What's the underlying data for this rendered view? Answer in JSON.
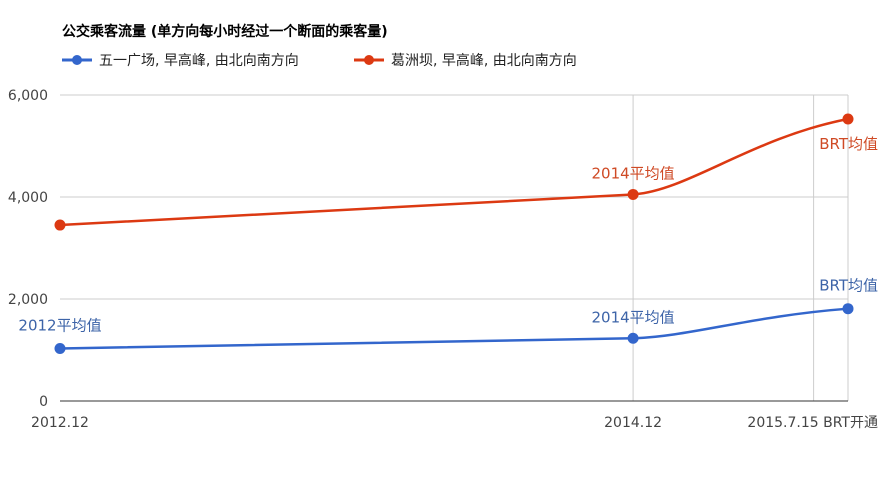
{
  "chart_data": {
    "type": "line",
    "title": "公交乘客流量 (单方向每小时经过一个断面的乘客量)",
    "x": [
      "2012.12",
      "2014.12",
      "2015.7.15 BRT开通"
    ],
    "x_positions": [
      2012.92,
      2014.92,
      2015.55
    ],
    "ylim": [
      0,
      6000
    ],
    "y_ticks": [
      "0",
      "2,000",
      "4,000",
      "6,000"
    ],
    "y_tick_values": [
      0,
      2000,
      4000,
      6000
    ],
    "grid": true,
    "legend_position": "top",
    "series": [
      {
        "name": "五一广场, 早高峰, 由北向南方向",
        "color": "#3366cc",
        "values": [
          1030,
          1230,
          1810
        ],
        "point_x": [
          2012.92,
          2014.92,
          2015.67
        ],
        "annotations": [
          "2012平均值",
          "2014平均值",
          "BRT均值"
        ]
      },
      {
        "name": "葛洲坝, 早高峰, 由北向南方向",
        "color": "#dc3912",
        "values": [
          3450,
          4050,
          5530
        ],
        "point_x": [
          2012.92,
          2014.92,
          2015.67
        ],
        "annotations": [
          "",
          "2014平均值",
          "BRT均值"
        ]
      }
    ]
  }
}
